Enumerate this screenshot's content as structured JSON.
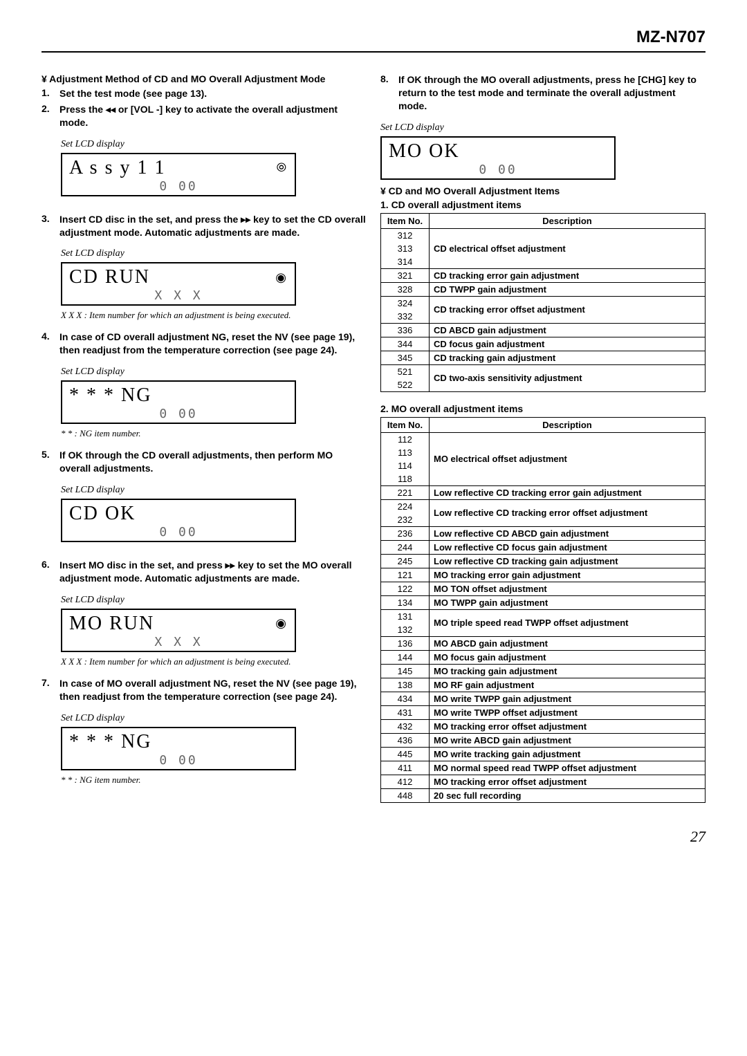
{
  "header": {
    "model": "MZ-N707"
  },
  "left": {
    "section": "¥  Adjustment Method of CD and MO Overall Adjustment Mode",
    "steps": [
      {
        "n": "1.",
        "body": "Set the test mode (see page 13)."
      },
      {
        "n": "2.",
        "body": "Press the ◂◂ or [VOL -] key to activate the overall adjustment mode."
      },
      {
        "n": "3.",
        "body": "Insert CD disc in the set, and press the ▸▸ key to set the CD overall adjustment mode. Automatic adjustments are made."
      },
      {
        "n": "4.",
        "body": "In case of CD overall adjustment NG, reset the NV (see page 19), then readjust from the temperature correction (see page 24)."
      },
      {
        "n": "5.",
        "body": "If OK through the CD overall adjustments, then perform MO overall  adjustments."
      },
      {
        "n": "6.",
        "body": "Insert MO disc in the set, and press ▸▸ key to set the MO overall adjustment mode.  Automatic adjustments are made."
      },
      {
        "n": "7.",
        "body": "In case of MO overall adjustment NG, reset the NV (see page 19), then readjust from the temperature correction (see page 24)."
      }
    ],
    "lcd_label": "Set LCD display",
    "lcd": {
      "assy": {
        "top": "A s  s  y 1 1",
        "bottom": "0 00",
        "icon": "disc-transfer"
      },
      "cdrun": {
        "top": "CD   RUN",
        "bottom": "X  X X",
        "icon": "disc-spin"
      },
      "ng1": {
        "top": "*  *  *    NG",
        "bottom": "0 00",
        "icon": ""
      },
      "cdok": {
        "top": "CD   OK",
        "bottom": "0 00",
        "icon": ""
      },
      "morun": {
        "top": "MO   RUN",
        "bottom": "X  X X",
        "icon": "disc-spin"
      },
      "ng2": {
        "top": "*  *  *    NG",
        "bottom": "0 00",
        "icon": ""
      }
    },
    "notes": {
      "xxx": "X X X : Item number for which an adjustment is being executed.",
      "ng": "* * : NG item number."
    }
  },
  "right": {
    "step8": {
      "n": "8.",
      "body": "If OK through the MO overall adjustments, press  he [CHG] key to return to the test mode and terminate the overall adjustment mode."
    },
    "lcd_label": "Set LCD display",
    "lcd_mook": {
      "top": "MO   OK",
      "bottom": "0 00"
    },
    "section": "¥  CD and MO Overall Adjustment Items",
    "sub1": "1.  CD overall adjustment items",
    "sub2": "2.  MO overall adjustment items",
    "th_no": "Item No.",
    "th_desc": "Description",
    "cd_items": [
      {
        "nums": [
          "312",
          "313",
          "314"
        ],
        "desc": "CD electrical offset adjustment"
      },
      {
        "nums": [
          "321"
        ],
        "desc": "CD tracking error gain adjustment"
      },
      {
        "nums": [
          "328"
        ],
        "desc": "CD TWPP gain adjustment"
      },
      {
        "nums": [
          "324",
          "332"
        ],
        "desc": "CD tracking error offset adjustment"
      },
      {
        "nums": [
          "336"
        ],
        "desc": "CD ABCD gain adjustment"
      },
      {
        "nums": [
          "344"
        ],
        "desc": "CD focus gain adjustment"
      },
      {
        "nums": [
          "345"
        ],
        "desc": "CD tracking gain adjustment"
      },
      {
        "nums": [
          "521",
          "522"
        ],
        "desc": "CD two-axis sensitivity adjustment"
      }
    ],
    "mo_items": [
      {
        "nums": [
          "112",
          "113",
          "114",
          "118"
        ],
        "desc": "MO electrical offset adjustment"
      },
      {
        "nums": [
          "221"
        ],
        "desc": "Low reflective CD tracking error gain adjustment"
      },
      {
        "nums": [
          "224",
          "232"
        ],
        "desc": "Low reflective CD tracking error offset adjustment"
      },
      {
        "nums": [
          "236"
        ],
        "desc": "Low reflective CD ABCD gain adjustment"
      },
      {
        "nums": [
          "244"
        ],
        "desc": "Low reflective CD focus gain adjustment"
      },
      {
        "nums": [
          "245"
        ],
        "desc": "Low reflective CD tracking gain adjustment"
      },
      {
        "nums": [
          "121"
        ],
        "desc": "MO tracking error gain adjustment"
      },
      {
        "nums": [
          "122"
        ],
        "desc": "MO TON offset adjustment"
      },
      {
        "nums": [
          "134"
        ],
        "desc": "MO TWPP gain adjustment"
      },
      {
        "nums": [
          "131",
          "132"
        ],
        "desc": "MO triple speed read TWPP offset adjustment"
      },
      {
        "nums": [
          "136"
        ],
        "desc": "MO ABCD gain adjustment"
      },
      {
        "nums": [
          "144"
        ],
        "desc": "MO focus gain adjustment"
      },
      {
        "nums": [
          "145"
        ],
        "desc": "MO tracking gain adjustment"
      },
      {
        "nums": [
          "138"
        ],
        "desc": "MO RF gain adjustment"
      },
      {
        "nums": [
          "434"
        ],
        "desc": "MO write TWPP gain adjustment"
      },
      {
        "nums": [
          "431"
        ],
        "desc": "MO write TWPP offset adjustment"
      },
      {
        "nums": [
          "432"
        ],
        "desc": "MO tracking error offset adjustment"
      },
      {
        "nums": [
          "436"
        ],
        "desc": "MO write ABCD gain adjustment"
      },
      {
        "nums": [
          "445"
        ],
        "desc": "MO write tracking gain adjustment"
      },
      {
        "nums": [
          "411"
        ],
        "desc": "MO normal speed read TWPP offset adjustment"
      },
      {
        "nums": [
          "412"
        ],
        "desc": "MO tracking error offset adjustment"
      },
      {
        "nums": [
          "448"
        ],
        "desc": "20 sec full recording"
      }
    ]
  },
  "page": "27"
}
